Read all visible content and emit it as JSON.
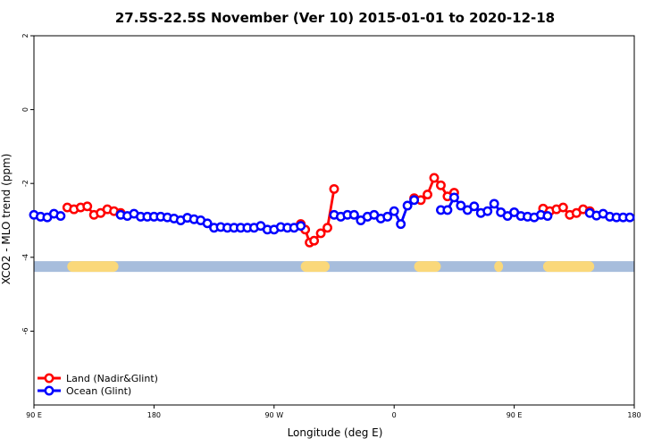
{
  "chart_data": {
    "type": "line",
    "title": "27.5S-22.5S November (Ver 10)   2015-01-01 to 2020-12-18",
    "xlabel": "Longitude (deg E)",
    "ylabel": "XCO2 - MLO trend (ppm)",
    "xlim": [
      -90,
      180
    ],
    "ylim": [
      -8,
      2
    ],
    "x_ticks": [
      {
        "value": -90,
        "label": "90 E"
      },
      {
        "value": -36,
        "label": "180"
      },
      {
        "value": 18,
        "label": "90 W"
      },
      {
        "value": 72,
        "label": "0"
      },
      {
        "value": 126,
        "label": "90 E"
      },
      {
        "value": 180,
        "label": "180"
      }
    ],
    "y_ticks": [
      {
        "value": -6,
        "label": "-6"
      },
      {
        "value": -4,
        "label": "-4"
      },
      {
        "value": -2,
        "label": "-2"
      },
      {
        "value": 0,
        "label": "0"
      },
      {
        "value": 2,
        "label": "2"
      }
    ],
    "legend": {
      "position": "bottom-left"
    },
    "series": [
      {
        "name": "Land (Nadir&Glint)",
        "color": "#ff0000",
        "segments": [
          [
            [
              -75,
              -2.65
            ],
            [
              -72,
              -2.7
            ],
            [
              -69,
              -2.65
            ],
            [
              -66,
              -2.62
            ],
            [
              -63,
              -2.85
            ],
            [
              -60,
              -2.8
            ],
            [
              -57,
              -2.7
            ],
            [
              -54,
              -2.75
            ],
            [
              -51,
              -2.8
            ]
          ],
          [
            [
              30,
              -3.1
            ],
            [
              32,
              -3.25
            ],
            [
              34,
              -3.6
            ],
            [
              36,
              -3.55
            ],
            [
              39,
              -3.35
            ],
            [
              42,
              -3.2
            ],
            [
              45,
              -2.15
            ]
          ],
          [
            [
              81,
              -2.4
            ],
            [
              84,
              -2.45
            ],
            [
              87,
              -2.3
            ],
            [
              90,
              -1.85
            ],
            [
              93,
              -2.05
            ],
            [
              96,
              -2.35
            ]
          ],
          [
            [
              99,
              -2.25
            ]
          ],
          [
            [
              139,
              -2.68
            ],
            [
              142,
              -2.75
            ],
            [
              145,
              -2.7
            ],
            [
              148,
              -2.65
            ],
            [
              151,
              -2.85
            ],
            [
              154,
              -2.8
            ],
            [
              157,
              -2.7
            ],
            [
              160,
              -2.75
            ]
          ]
        ]
      },
      {
        "name": "Ocean (Glint)",
        "color": "#0000ff",
        "segments": [
          [
            [
              -90,
              -2.85
            ],
            [
              -87,
              -2.9
            ],
            [
              -84,
              -2.92
            ],
            [
              -81,
              -2.82
            ],
            [
              -78,
              -2.88
            ]
          ],
          [
            [
              -51,
              -2.85
            ],
            [
              -48,
              -2.88
            ],
            [
              -45,
              -2.82
            ],
            [
              -42,
              -2.9
            ],
            [
              -39,
              -2.9
            ],
            [
              -36,
              -2.9
            ],
            [
              -33,
              -2.9
            ],
            [
              -30,
              -2.92
            ],
            [
              -27,
              -2.95
            ],
            [
              -24,
              -3.0
            ],
            [
              -21,
              -2.93
            ],
            [
              -18,
              -2.97
            ],
            [
              -15,
              -3.0
            ],
            [
              -12,
              -3.08
            ],
            [
              -9,
              -3.2
            ],
            [
              -6,
              -3.18
            ],
            [
              -3,
              -3.2
            ],
            [
              0,
              -3.2
            ],
            [
              3,
              -3.2
            ],
            [
              6,
              -3.2
            ],
            [
              9,
              -3.2
            ],
            [
              12,
              -3.15
            ],
            [
              15,
              -3.25
            ],
            [
              18,
              -3.25
            ],
            [
              21,
              -3.18
            ],
            [
              24,
              -3.2
            ],
            [
              27,
              -3.2
            ],
            [
              30,
              -3.15
            ]
          ],
          [
            [
              45,
              -2.85
            ],
            [
              48,
              -2.9
            ],
            [
              51,
              -2.85
            ],
            [
              54,
              -2.85
            ],
            [
              57,
              -3.0
            ],
            [
              60,
              -2.9
            ],
            [
              63,
              -2.85
            ],
            [
              66,
              -2.95
            ],
            [
              69,
              -2.9
            ],
            [
              72,
              -2.75
            ],
            [
              75,
              -3.1
            ],
            [
              78,
              -2.6
            ],
            [
              81,
              -2.45
            ]
          ],
          [
            [
              93,
              -2.72
            ],
            [
              96,
              -2.72
            ],
            [
              99,
              -2.38
            ],
            [
              102,
              -2.6
            ],
            [
              105,
              -2.72
            ],
            [
              108,
              -2.62
            ],
            [
              111,
              -2.8
            ],
            [
              114,
              -2.75
            ],
            [
              117,
              -2.55
            ],
            [
              120,
              -2.78
            ],
            [
              123,
              -2.88
            ],
            [
              126,
              -2.78
            ],
            [
              129,
              -2.88
            ],
            [
              132,
              -2.9
            ],
            [
              135,
              -2.92
            ],
            [
              138,
              -2.85
            ],
            [
              141,
              -2.88
            ]
          ],
          [
            [
              160,
              -2.8
            ],
            [
              163,
              -2.87
            ],
            [
              166,
              -2.82
            ],
            [
              169,
              -2.9
            ],
            [
              172,
              -2.92
            ],
            [
              175,
              -2.92
            ],
            [
              178,
              -2.92
            ]
          ]
        ]
      }
    ],
    "surface_strip": {
      "y": -4.25,
      "ocean_color": "#a7bddc",
      "land_color": "#fad87a",
      "land_ranges": [
        [
          -75,
          -52
        ],
        [
          30,
          43
        ],
        [
          81,
          93
        ],
        [
          117,
          121
        ],
        [
          139,
          162
        ]
      ]
    }
  }
}
